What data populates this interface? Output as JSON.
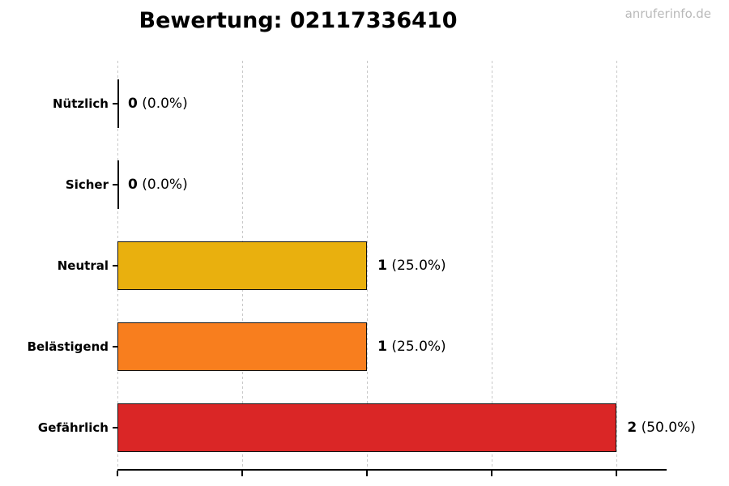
{
  "page": {
    "background": "#ffffff"
  },
  "watermark": {
    "text": "anruferinfo.de",
    "color": "#b9b9b9"
  },
  "chart_data": {
    "type": "bar",
    "orientation": "horizontal",
    "title": "Bewertung: 02117336410",
    "categories": [
      "Nützlich",
      "Sicher",
      "Neutral",
      "Belästigend",
      "Gefährlich"
    ],
    "values": [
      0,
      0,
      1,
      1,
      2
    ],
    "percentages": [
      0.0,
      0.0,
      25.0,
      25.0,
      50.0
    ],
    "value_labels": [
      {
        "count": "0",
        "pct": "(0.0%)"
      },
      {
        "count": "0",
        "pct": "(0.0%)"
      },
      {
        "count": "1",
        "pct": "(25.0%)"
      },
      {
        "count": "1",
        "pct": "(25.0%)"
      },
      {
        "count": "2",
        "pct": "(50.0%)"
      }
    ],
    "bar_colors": [
      "#111111",
      "#111111",
      "#E9B00E",
      "#F87E1E",
      "#DA2626"
    ],
    "bar_edge_color": "#111111",
    "xlabel": "",
    "ylabel": "",
    "xlim": [
      0,
      2.2
    ],
    "x_tick_values": [
      0,
      0.5,
      1.0,
      1.5,
      2.0
    ],
    "x_tick_labels_shown": false,
    "grid": {
      "axis": "x",
      "style": "dashed",
      "color": "#c8c8c8",
      "shown": true
    },
    "legend": "none",
    "axis_color": "#000000"
  }
}
